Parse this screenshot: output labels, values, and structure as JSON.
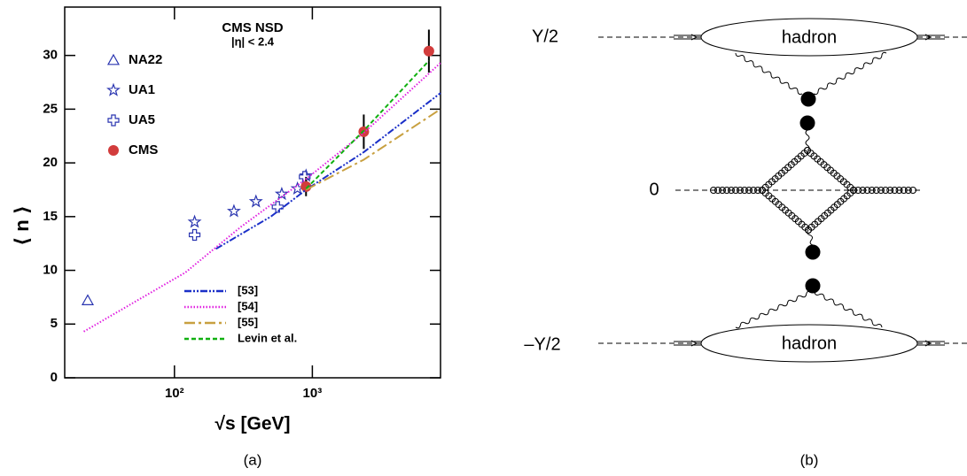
{
  "chart_data": {
    "type": "scatter-line",
    "annotations": [
      "CMS NSD",
      "|η| < 2.4"
    ],
    "y_label": "⟨ n ⟩",
    "x_label": "√s [GeV]",
    "caption": "(a)",
    "xlog": true,
    "xlim": [
      16,
      8500
    ],
    "ylim": [
      0,
      34.5
    ],
    "xticks": [
      {
        "value": 100,
        "label": "10²"
      },
      {
        "value": 1000,
        "label": "10³"
      }
    ],
    "yticks": [
      0,
      5,
      10,
      15,
      20,
      25,
      30
    ],
    "grid": false,
    "series": [
      {
        "name": "NA22",
        "kind": "markers",
        "marker": "triangle",
        "color": "#2a35b0",
        "x": [
          23.5
        ],
        "values": [
          7.2
        ]
      },
      {
        "name": "UA1",
        "kind": "markers",
        "marker": "star",
        "color": "#2a35b0",
        "x": [
          140,
          270,
          390,
          600,
          780,
          900
        ],
        "values": [
          14.5,
          15.5,
          16.4,
          17.1,
          17.6,
          18.8
        ]
      },
      {
        "name": "UA5",
        "kind": "markers",
        "marker": "cross",
        "color": "#2a35b0",
        "x": [
          140,
          560,
          880
        ],
        "values": [
          13.3,
          15.9,
          18.7
        ]
      },
      {
        "name": "CMS",
        "kind": "markers",
        "marker": "circle",
        "color": "#d23c3c",
        "x": [
          900,
          2360,
          7000
        ],
        "values": [
          17.8,
          22.9,
          30.4
        ],
        "errors": [
          0.9,
          1.6,
          2.0
        ]
      },
      {
        "name": "[53]",
        "kind": "line",
        "dash": "8 2 2 2 2 2",
        "color": "#1a2fc8",
        "x": [
          200,
          500,
          900,
          2360,
          8500
        ],
        "values": [
          12.0,
          15.0,
          17.5,
          21.0,
          26.5
        ]
      },
      {
        "name": "[54]",
        "kind": "line",
        "dash": "1.5 2",
        "color": "#e020e0",
        "x": [
          22,
          120,
          300,
          900,
          2360,
          8500
        ],
        "values": [
          4.3,
          9.8,
          14.0,
          18.5,
          22.8,
          29.3
        ]
      },
      {
        "name": "[55]",
        "kind": "line",
        "dash": "12 4 3 4",
        "color": "#c8a040",
        "x": [
          900,
          2360,
          8500
        ],
        "values": [
          17.5,
          20.3,
          25.0
        ]
      },
      {
        "name": "Levin et al.",
        "kind": "line",
        "dash": "5 3",
        "color": "#10b010",
        "x": [
          900,
          2360,
          7000
        ],
        "values": [
          17.6,
          23.0,
          29.5
        ]
      }
    ]
  },
  "diagram": {
    "top_label": "Y/2",
    "middle_label": "0",
    "bottom_label": "–Y/2",
    "top_hadron": "hadron",
    "bottom_hadron": "hadron",
    "caption": "(b)"
  }
}
